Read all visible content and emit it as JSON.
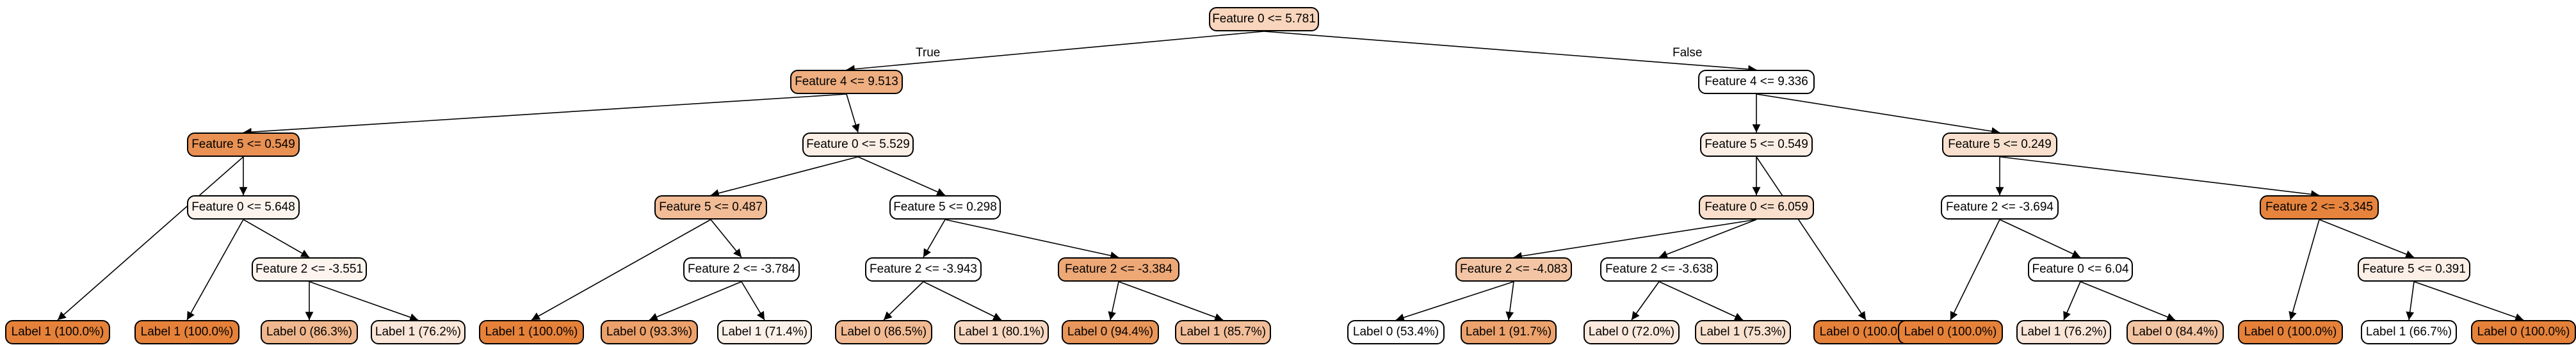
{
  "tree": {
    "edge_labels": {
      "true": "True",
      "false": "False"
    },
    "nodes": [
      {
        "id": "n0",
        "text": "Feature 0 <= 5.781",
        "fill": "#f8d5bc",
        "children": [
          "n1",
          "n2"
        ]
      },
      {
        "id": "n1",
        "text": "Feature 4 <= 9.513",
        "fill": "#eeae80",
        "children": [
          "n3",
          "n4"
        ]
      },
      {
        "id": "n2",
        "text": "Feature 4 <= 9.336",
        "fill": "#ffffff",
        "children": [
          "n5",
          "n6"
        ]
      },
      {
        "id": "n3",
        "text": "Feature 5 <= 0.549",
        "fill": "#e89153",
        "children": [
          "l1",
          "n7"
        ]
      },
      {
        "id": "n4",
        "text": "Feature 0 <= 5.529",
        "fill": "#fcefe6",
        "children": [
          "n8",
          "n9"
        ]
      },
      {
        "id": "n5",
        "text": "Feature 5 <= 0.549",
        "fill": "#fcefe6",
        "children": [
          "n10",
          "l16"
        ]
      },
      {
        "id": "n6",
        "text": "Feature 5 <= 0.249",
        "fill": "#f9e0ce",
        "children": [
          "n11",
          "n12"
        ]
      },
      {
        "id": "n7",
        "text": "Feature 0 <= 5.648",
        "fill": "#fdf4ee",
        "children": [
          "l2",
          "n13"
        ]
      },
      {
        "id": "n8",
        "text": "Feature 5 <= 0.487",
        "fill": "#f1bc96",
        "children": [
          "l4",
          "n14"
        ]
      },
      {
        "id": "n9",
        "text": "Feature 5 <= 0.298",
        "fill": "#ffffff",
        "children": [
          "n15",
          "n16"
        ]
      },
      {
        "id": "n10",
        "text": "Feature 0 <= 6.059",
        "fill": "#f9dfcc",
        "children": [
          "n17",
          "n18"
        ]
      },
      {
        "id": "n11",
        "text": "Feature 2 <= -3.694",
        "fill": "#ffffff",
        "children": [
          "l17",
          "n19"
        ]
      },
      {
        "id": "n12",
        "text": "Feature 2 <= -3.345",
        "fill": "#e6843e",
        "children": [
          "l20",
          "n20"
        ]
      },
      {
        "id": "n13",
        "text": "Feature 2 <= -3.551",
        "fill": "#fdf4ee",
        "children": [
          "l3",
          "l3b"
        ]
      },
      {
        "id": "n14",
        "text": "Feature 2 <= -3.784",
        "fill": "#ffffff",
        "children": [
          "l5",
          "l6"
        ]
      },
      {
        "id": "n15",
        "text": "Feature 2 <= -3.943",
        "fill": "#ffffff",
        "children": [
          "l7",
          "l8"
        ]
      },
      {
        "id": "n16",
        "text": "Feature 2 <= -3.384",
        "fill": "#eda876",
        "children": [
          "l9",
          "l10"
        ]
      },
      {
        "id": "n17",
        "text": "Feature 2 <= -4.083",
        "fill": "#f3c5a4",
        "children": [
          "l11",
          "l12"
        ]
      },
      {
        "id": "n18",
        "text": "Feature 2 <= -3.638",
        "fill": "#ffffff",
        "children": [
          "l13",
          "l14"
        ]
      },
      {
        "id": "n19",
        "text": "Feature 0 <= 6.04",
        "fill": "#ffffff",
        "children": [
          "l18",
          "l19"
        ]
      },
      {
        "id": "n20",
        "text": "Feature 5 <= 0.391",
        "fill": "#fcefe6",
        "children": [
          "l21",
          "l22"
        ]
      },
      {
        "id": "l1",
        "text": "Label 1 (100.0%)",
        "fill": "#e58139",
        "children": []
      },
      {
        "id": "l2",
        "text": "Label 1 (100.0%)",
        "fill": "#e58139",
        "children": []
      },
      {
        "id": "l3",
        "text": "Label 0 (86.3%)",
        "fill": "#f0b78e",
        "children": []
      },
      {
        "id": "l3b",
        "text": "Label 1 (76.2%)",
        "fill": "#fae6d8",
        "children": []
      },
      {
        "id": "l4",
        "text": "Label 1 (100.0%)",
        "fill": "#e58139",
        "children": []
      },
      {
        "id": "l5",
        "text": "Label 0 (93.3%)",
        "fill": "#eca06a",
        "children": []
      },
      {
        "id": "l6",
        "text": "Label 1 (71.4%)",
        "fill": "#fcf1e9",
        "children": []
      },
      {
        "id": "l7",
        "text": "Label 0 (86.5%)",
        "fill": "#f1ba92",
        "children": []
      },
      {
        "id": "l8",
        "text": "Label 1 (80.1%)",
        "fill": "#f8d8c2",
        "children": []
      },
      {
        "id": "l9",
        "text": "Label 0 (94.4%)",
        "fill": "#e9965a",
        "children": []
      },
      {
        "id": "l10",
        "text": "Label 1 (85.7%)",
        "fill": "#f2be99",
        "children": []
      },
      {
        "id": "l11",
        "text": "Label 0 (53.4%)",
        "fill": "#ffffff",
        "children": []
      },
      {
        "id": "l12",
        "text": "Label 1 (91.7%)",
        "fill": "#eca26d",
        "children": []
      },
      {
        "id": "l13",
        "text": "Label 0 (72.0%)",
        "fill": "#fbe9dd",
        "children": []
      },
      {
        "id": "l14",
        "text": "Label 1 (75.3%)",
        "fill": "#f9e1cf",
        "children": []
      },
      {
        "id": "l16",
        "text": "Label 0 (100.0%)",
        "fill": "#e58139",
        "children": []
      },
      {
        "id": "l17",
        "text": "Label 0 (100.0%)",
        "fill": "#e58139",
        "children": []
      },
      {
        "id": "l18",
        "text": "Label 1 (76.2%)",
        "fill": "#fae6d8",
        "children": []
      },
      {
        "id": "l19",
        "text": "Label 0 (84.4%)",
        "fill": "#f3c4a2",
        "children": []
      },
      {
        "id": "l20",
        "text": "Label 0 (100.0%)",
        "fill": "#e58139",
        "children": []
      },
      {
        "id": "l21",
        "text": "Label 1 (66.7%)",
        "fill": "#ffffff",
        "children": []
      },
      {
        "id": "l22",
        "text": "Label 0 (100.0%)",
        "fill": "#e58139",
        "children": []
      }
    ]
  }
}
